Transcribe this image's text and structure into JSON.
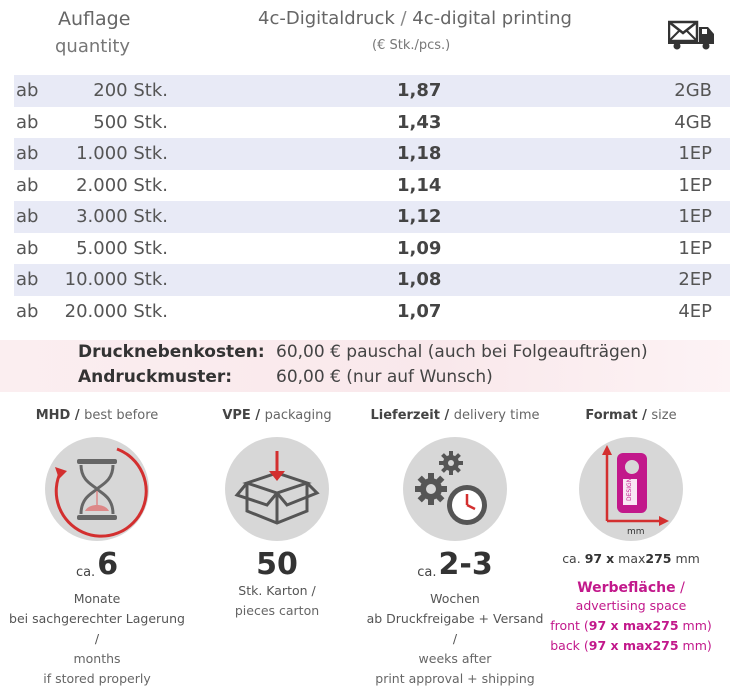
{
  "header": {
    "quantity_de": "Auflage",
    "quantity_en": "quantity",
    "print_de": "4c-Digitaldruck",
    "print_sep": " / ",
    "print_en": "4c-digital printing",
    "unit": "(€ Stk./pcs.)",
    "shipping_icon": "truck-mail-icon"
  },
  "rows": [
    {
      "prefix": "ab",
      "qty": "200 Stk.",
      "price": "1,87",
      "code": "2GB"
    },
    {
      "prefix": "ab",
      "qty": "500 Stk.",
      "price": "1,43",
      "code": "4GB"
    },
    {
      "prefix": "ab",
      "qty": "1.000 Stk.",
      "price": "1,18",
      "code": "1EP"
    },
    {
      "prefix": "ab",
      "qty": "2.000 Stk.",
      "price": "1,14",
      "code": "1EP"
    },
    {
      "prefix": "ab",
      "qty": "3.000 Stk.",
      "price": "1,12",
      "code": "1EP"
    },
    {
      "prefix": "ab",
      "qty": "5.000 Stk.",
      "price": "1,09",
      "code": "1EP"
    },
    {
      "prefix": "ab",
      "qty": "10.000 Stk.",
      "price": "1,08",
      "code": "2EP"
    },
    {
      "prefix": "ab",
      "qty": "20.000 Stk.",
      "price": "1,07",
      "code": "4EP"
    }
  ],
  "costs": {
    "print_costs_label": "Drucknebenkosten:",
    "print_costs_value": "60,00 € pauschal (auch bei Folgeaufträgen)",
    "proof_label": "Andruckmuster:",
    "proof_value": "60,00 € (nur auf Wunsch)"
  },
  "features": {
    "mhd": {
      "title_de": "MHD",
      "title_en": "best before",
      "ca": "ca.",
      "value": "6",
      "line1": "Monate",
      "line2": "bei sachgerechter Lagerung /",
      "line3": "months",
      "line4": "if stored properly",
      "icon": "hourglass-icon"
    },
    "vpe": {
      "title_de": "VPE",
      "title_en": "packaging",
      "value": "50",
      "line1": "Stk. Karton /",
      "line2": "pieces carton",
      "icon": "box-icon"
    },
    "delivery": {
      "title_de": "Lieferzeit",
      "title_en": "delivery time",
      "ca": "ca.",
      "value": "2-3",
      "line1": "Wochen",
      "line2": "ab Druckfreigabe + Versand /",
      "line3": "weeks after",
      "line4": "print approval + shipping",
      "icon": "gears-clock-icon"
    },
    "format": {
      "title_de": "Format",
      "title_en": "size",
      "size_prefix": "ca.",
      "size_w": "97",
      "size_x": "x",
      "size_max": "max",
      "size_h": "275",
      "size_unit": "mm",
      "icon_label_design": "DESIGN",
      "icon_label_mm": "mm",
      "ad_de": "Werbefläche",
      "ad_sep": " /",
      "ad_en": "advertising space",
      "front_pre": "front (",
      "front_dims": "97 x max275",
      "front_post": " mm)",
      "back_pre": "back (",
      "back_dims": "97 x max275",
      "back_post": " mm)",
      "icon": "door-hanger-icon"
    }
  },
  "colors": {
    "row_shade": "#e8eaf6",
    "accent_red": "#d32f2f",
    "accent_magenta": "#c2188b",
    "circle_grey": "#d7d7d7"
  }
}
